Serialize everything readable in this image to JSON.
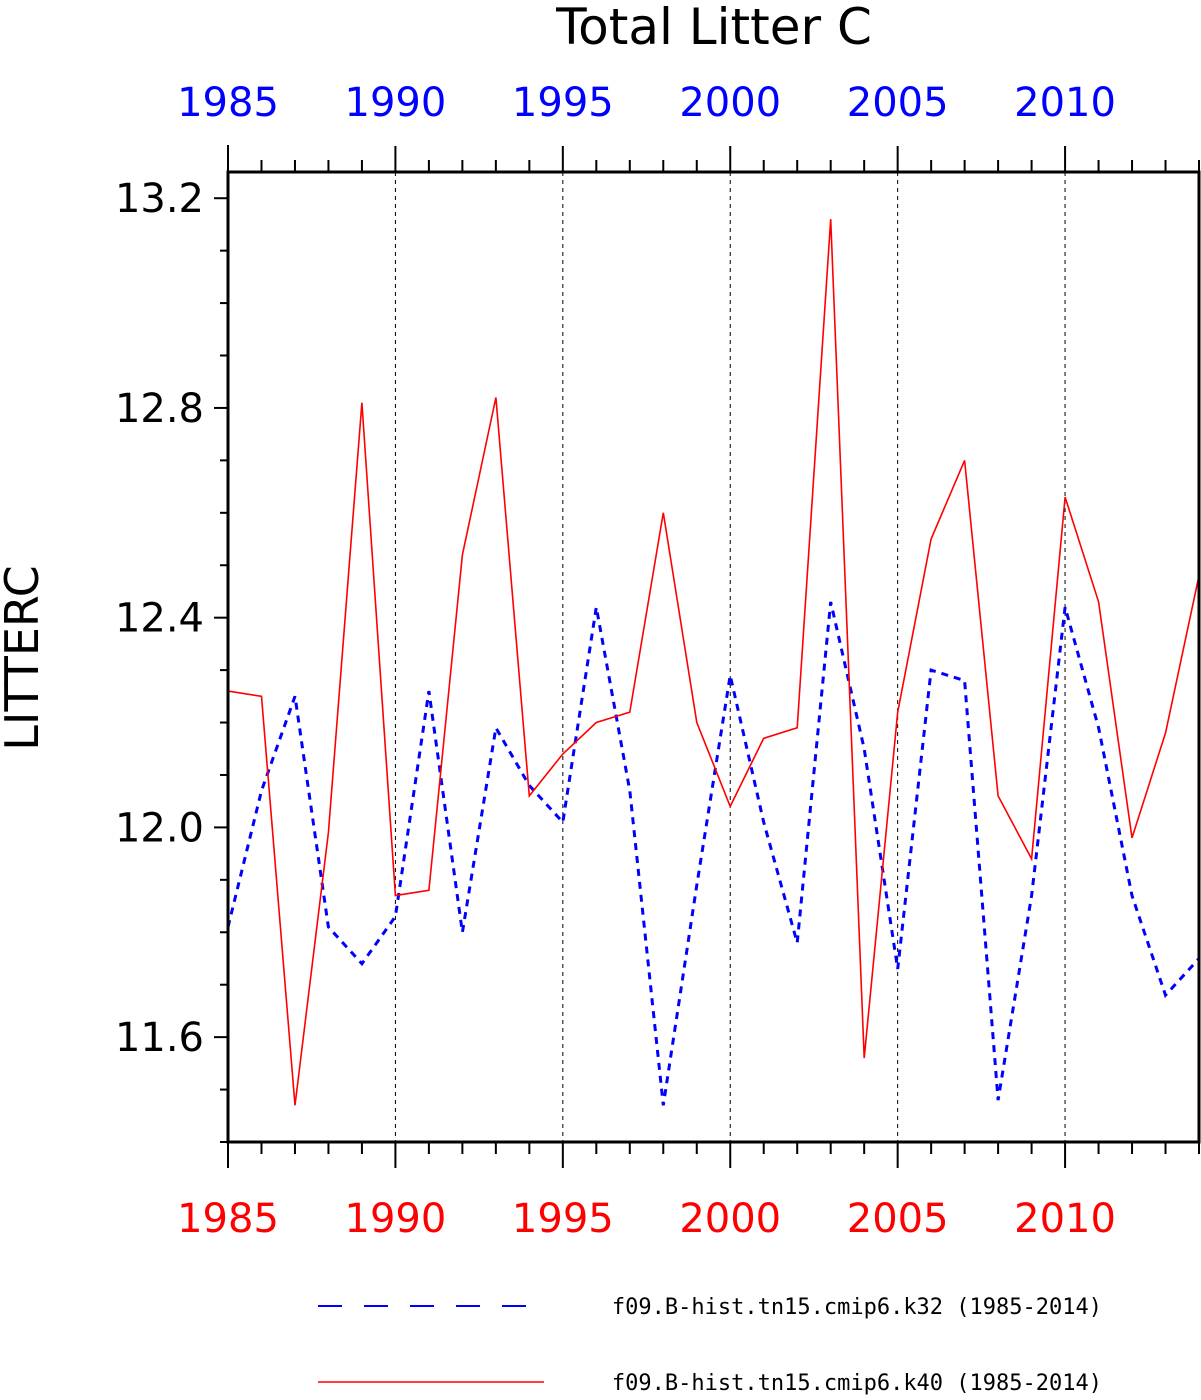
{
  "chart_data": {
    "type": "line",
    "title": "Total Litter C",
    "ylabel": "LITTERC",
    "xlabel": "",
    "xlim": [
      1985,
      2014
    ],
    "ylim": [
      11.4,
      13.25
    ],
    "x_ticks": [
      1985,
      1990,
      1995,
      2000,
      2005,
      2010
    ],
    "x_tick_labels": [
      "1985",
      "1990",
      "1995",
      "2000",
      "2005",
      "2010"
    ],
    "x_minor_step": 1,
    "y_ticks": [
      11.6,
      12.0,
      12.4,
      12.8,
      13.2
    ],
    "y_tick_labels": [
      "11.6",
      "12.0",
      "12.4",
      "12.8",
      "13.2"
    ],
    "y_minor_step": 0.1,
    "grid": "vertical dashed at major x ticks",
    "top_axis_color": "#0000ff",
    "bottom_axis_color": "#ff0000",
    "legend_position": "bottom",
    "x": [
      1985,
      1986,
      1987,
      1988,
      1989,
      1990,
      1991,
      1992,
      1993,
      1994,
      1995,
      1996,
      1997,
      1998,
      1999,
      2000,
      2001,
      2002,
      2003,
      2004,
      2005,
      2006,
      2007,
      2008,
      2009,
      2010,
      2011,
      2012,
      2013,
      2014
    ],
    "series": [
      {
        "name": "f09.B-hist.tn15.cmip6.k32 (1985-2014)",
        "color": "#0000ff",
        "style": "dashed",
        "values": [
          11.81,
          12.07,
          12.25,
          11.81,
          11.74,
          11.83,
          12.26,
          11.8,
          12.19,
          12.08,
          12.01,
          12.42,
          12.07,
          11.47,
          11.89,
          12.29,
          12.01,
          11.78,
          12.43,
          12.15,
          11.73,
          12.3,
          12.28,
          11.48,
          11.87,
          12.42,
          12.19,
          11.87,
          11.68,
          11.75
        ]
      },
      {
        "name": "f09.B-hist.tn15.cmip6.k40 (1985-2014)",
        "color": "#ff0000",
        "style": "solid",
        "values": [
          12.26,
          12.25,
          11.47,
          11.99,
          12.81,
          11.87,
          11.88,
          12.52,
          12.82,
          12.06,
          12.14,
          12.2,
          12.22,
          12.6,
          12.2,
          12.04,
          12.17,
          12.19,
          13.16,
          11.56,
          12.22,
          12.55,
          12.7,
          12.06,
          11.94,
          12.63,
          12.43,
          11.98,
          12.18,
          12.48
        ]
      }
    ]
  }
}
